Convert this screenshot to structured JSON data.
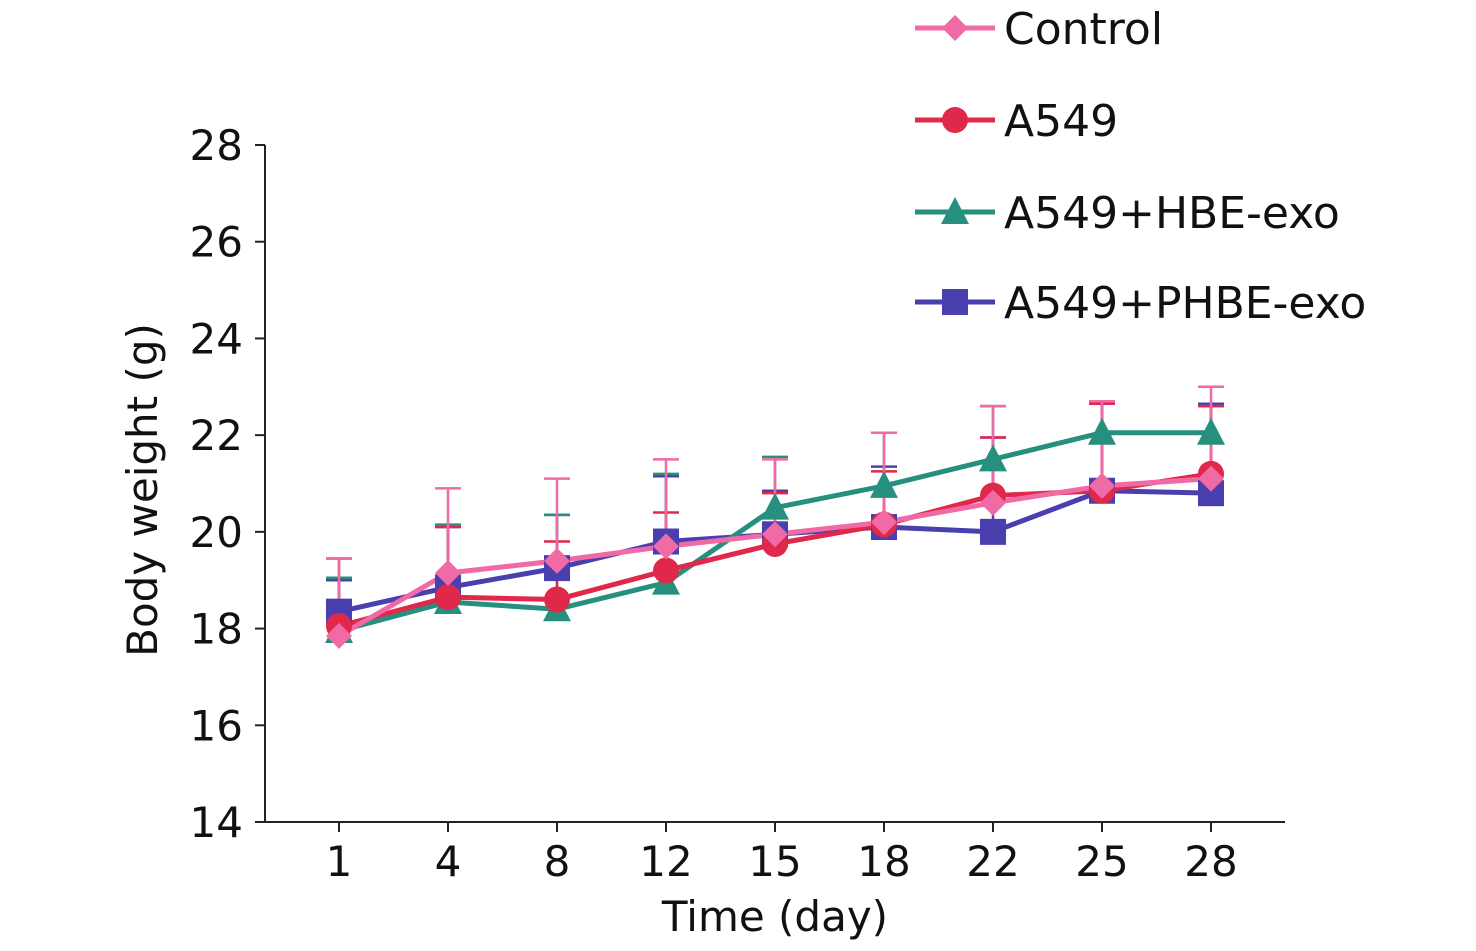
{
  "colors": {
    "control": "#f06aa6",
    "a549": "#e0284a",
    "hbe": "#268f7e",
    "phbe": "#4a3fae",
    "axis": "#222222"
  },
  "chart_data": {
    "type": "line",
    "title": "",
    "xlabel": "Time (day)",
    "ylabel": "Body weight (g)",
    "ylim": [
      14,
      28
    ],
    "yticks": [
      "14",
      "16",
      "18",
      "20",
      "22",
      "24",
      "26",
      "28"
    ],
    "categories": [
      "1",
      "4",
      "8",
      "12",
      "15",
      "18",
      "22",
      "25",
      "28"
    ],
    "grid": false,
    "legend_position": "top-right",
    "series": [
      {
        "name": "A549+PHBE-exo",
        "key": "phbe",
        "marker": "square",
        "values": [
          18.35,
          18.85,
          19.25,
          19.8,
          19.95,
          20.1,
          20.0,
          20.85,
          20.8
        ],
        "errors": [
          0.65,
          1.25,
          1.1,
          1.35,
          0.9,
          1.25,
          1.95,
          1.85,
          1.85
        ]
      },
      {
        "name": "A549+HBE-exo",
        "key": "hbe",
        "marker": "triangle",
        "values": [
          17.95,
          18.55,
          18.4,
          18.95,
          20.5,
          20.95,
          21.5,
          22.05,
          22.05
        ],
        "errors": [
          1.1,
          1.6,
          1.95,
          2.25,
          1.05,
          1.1,
          1.1,
          0.6,
          0.55
        ]
      },
      {
        "name": "A549",
        "key": "a549",
        "marker": "circle",
        "values": [
          18.05,
          18.65,
          18.6,
          19.2,
          19.75,
          20.15,
          20.75,
          20.85,
          21.2
        ],
        "errors": [
          1.4,
          1.45,
          1.2,
          1.2,
          1.05,
          1.1,
          1.2,
          1.8,
          1.4
        ]
      },
      {
        "name": "Control",
        "key": "control",
        "marker": "diamond",
        "values": [
          17.85,
          19.15,
          19.4,
          19.7,
          19.95,
          20.2,
          20.6,
          20.95,
          21.1
        ],
        "errors": [
          1.6,
          1.75,
          1.7,
          1.8,
          1.55,
          1.85,
          2.0,
          1.75,
          1.9
        ]
      }
    ]
  },
  "legend": {
    "items": [
      {
        "label": "Control",
        "key": "control",
        "marker": "diamond"
      },
      {
        "label": "A549",
        "key": "a549",
        "marker": "circle"
      },
      {
        "label": "A549+HBE-exo",
        "key": "hbe",
        "marker": "triangle"
      },
      {
        "label": "A549+PHBE-exo",
        "key": "phbe",
        "marker": "square"
      }
    ]
  }
}
